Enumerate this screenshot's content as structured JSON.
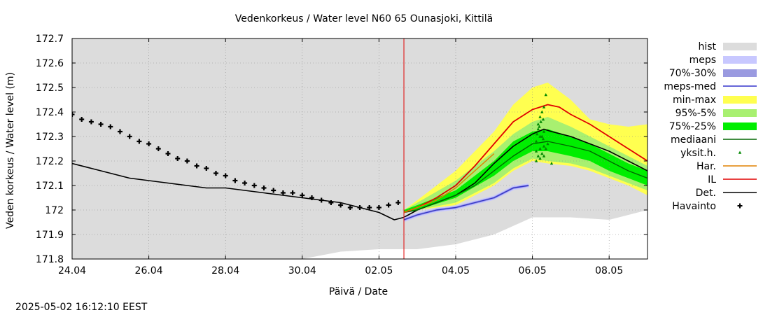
{
  "chart_data": {
    "type": "line",
    "title": "Vedenkorkeus / Water level   N60 65 Ounasjoki, Kittilä",
    "xlabel": "Päivä / Date",
    "ylabel": "Veden korkeus / Water level (m)",
    "ylim": [
      171.8,
      172.7
    ],
    "xlim": [
      0,
      15
    ],
    "x_unit": "days from 24.04.2025",
    "xticks": [
      {
        "x": 0,
        "label": "24.04"
      },
      {
        "x": 2,
        "label": "26.04"
      },
      {
        "x": 4,
        "label": "28.04"
      },
      {
        "x": 6,
        "label": "30.04"
      },
      {
        "x": 8,
        "label": "02.05"
      },
      {
        "x": 10,
        "label": "04.05"
      },
      {
        "x": 12,
        "label": "06.05"
      },
      {
        "x": 14,
        "label": "08.05"
      }
    ],
    "yticks": [
      "171.8",
      "171.9",
      "172",
      "172.1",
      "172.2",
      "172.3",
      "172.4",
      "172.5",
      "172.6",
      "172.7"
    ],
    "grid": true,
    "legend_position": "right",
    "forecast_start_x": 8.65,
    "legend": [
      {
        "label": "hist",
        "type": "band",
        "color": "#dcdcdc"
      },
      {
        "label": "meps",
        "type": "band",
        "color": "#c8c8ff"
      },
      {
        "label": "70%-30%",
        "type": "band",
        "color": "#9a9ae0"
      },
      {
        "label": "meps-med",
        "type": "line",
        "color": "#3333cc"
      },
      {
        "label": "min-max",
        "type": "band",
        "color": "#ffff50"
      },
      {
        "label": "95%-5%",
        "type": "band",
        "color": "#a8f070"
      },
      {
        "label": "75%-25%",
        "type": "band",
        "color": "#00ee00"
      },
      {
        "label": "mediaani",
        "type": "line",
        "color": "#006600"
      },
      {
        "label": "yksit.h.",
        "type": "point",
        "color": "#008800"
      },
      {
        "label": "Har.",
        "type": "line",
        "color": "#e08000"
      },
      {
        "label": "IL",
        "type": "line",
        "color": "#e00000"
      },
      {
        "label": "Det.",
        "type": "line",
        "color": "#000000"
      },
      {
        "label": "Havainto",
        "type": "marker",
        "color": "#000000"
      }
    ],
    "bands": {
      "hist": {
        "color": "#dcdcdc",
        "x": [
          0,
          6,
          7,
          8,
          9,
          10,
          11,
          12,
          13,
          14,
          15
        ],
        "lower": [
          171.8,
          171.8,
          171.83,
          171.84,
          171.84,
          171.86,
          171.9,
          171.97,
          171.97,
          171.96,
          172.0
        ],
        "upper": [
          172.7,
          172.7,
          172.7,
          172.7,
          172.7,
          172.7,
          172.7,
          172.7,
          172.7,
          172.7,
          172.7
        ]
      },
      "min_max": {
        "color": "#ffff50",
        "x": [
          8.65,
          9,
          10,
          11,
          11.5,
          12,
          12.4,
          13,
          13.5,
          14,
          14.5,
          15
        ],
        "lower": [
          171.99,
          172.0,
          172.02,
          172.1,
          172.16,
          172.2,
          172.19,
          172.18,
          172.16,
          172.13,
          172.1,
          172.06
        ],
        "upper": [
          172.0,
          172.04,
          172.16,
          172.32,
          172.43,
          172.5,
          172.52,
          172.45,
          172.37,
          172.35,
          172.34,
          172.35
        ]
      },
      "p95_5": {
        "color": "#a8f070",
        "x": [
          8.65,
          9,
          10,
          11,
          11.5,
          12,
          12.4,
          13,
          13.5,
          14,
          14.5,
          15
        ],
        "lower": [
          171.99,
          172.0,
          172.03,
          172.11,
          172.17,
          172.21,
          172.2,
          172.19,
          172.17,
          172.14,
          172.11,
          172.08
        ],
        "upper": [
          172.0,
          172.03,
          172.12,
          172.24,
          172.31,
          172.36,
          172.38,
          172.34,
          172.3,
          172.26,
          172.22,
          172.18
        ]
      },
      "p75_25": {
        "color": "#00ee00",
        "x": [
          8.65,
          9,
          10,
          11,
          11.5,
          12,
          12.4,
          13,
          13.5,
          14,
          14.5,
          15
        ],
        "lower": [
          171.99,
          172.0,
          172.05,
          172.14,
          172.2,
          172.24,
          172.24,
          172.22,
          172.2,
          172.16,
          172.13,
          172.1
        ],
        "upper": [
          172.0,
          172.02,
          172.08,
          172.2,
          172.28,
          172.32,
          172.33,
          172.3,
          172.27,
          172.23,
          172.19,
          172.16
        ]
      }
    },
    "series": [
      {
        "name": "Havainto",
        "kind": "markers",
        "color": "#000000",
        "x": [
          0,
          0.25,
          0.5,
          0.75,
          1,
          1.25,
          1.5,
          1.75,
          2,
          2.25,
          2.5,
          2.75,
          3,
          3.25,
          3.5,
          3.75,
          4,
          4.25,
          4.5,
          4.75,
          5,
          5.25,
          5.5,
          5.75,
          6,
          6.25,
          6.5,
          6.75,
          7,
          7.25,
          7.5,
          7.75,
          8,
          8.25,
          8.5
        ],
        "y": [
          172.39,
          172.37,
          172.36,
          172.35,
          172.34,
          172.32,
          172.3,
          172.28,
          172.27,
          172.25,
          172.23,
          172.21,
          172.2,
          172.18,
          172.17,
          172.15,
          172.14,
          172.12,
          172.11,
          172.1,
          172.09,
          172.08,
          172.07,
          172.07,
          172.06,
          172.05,
          172.04,
          172.03,
          172.02,
          172.01,
          172.01,
          172.01,
          172.01,
          172.02,
          172.03
        ]
      },
      {
        "name": "Det.",
        "kind": "line",
        "color": "#000000",
        "x": [
          0,
          0.5,
          1,
          1.5,
          2,
          2.5,
          3,
          3.5,
          4,
          4.5,
          5,
          5.5,
          6,
          6.5,
          7,
          7.5,
          8,
          8.4,
          8.65,
          9,
          9.5,
          10,
          10.5,
          11,
          11.5,
          12,
          12.3,
          12.5,
          13,
          13.5,
          14,
          14.5,
          15
        ],
        "y": [
          172.19,
          172.17,
          172.15,
          172.13,
          172.12,
          172.11,
          172.1,
          172.09,
          172.09,
          172.08,
          172.07,
          172.06,
          172.05,
          172.04,
          172.03,
          172.01,
          171.99,
          171.96,
          171.97,
          172.0,
          172.03,
          172.06,
          172.11,
          172.19,
          172.26,
          172.31,
          172.33,
          172.32,
          172.3,
          172.27,
          172.24,
          172.2,
          172.16
        ]
      },
      {
        "name": "mediaani",
        "kind": "line",
        "color": "#006600",
        "x": [
          8.65,
          9,
          9.5,
          10,
          10.5,
          11,
          11.5,
          12,
          12.4,
          13,
          13.5,
          14,
          14.5,
          15
        ],
        "y": [
          171.99,
          172.0,
          172.03,
          172.06,
          172.1,
          172.16,
          172.22,
          172.27,
          172.28,
          172.26,
          172.24,
          172.2,
          172.16,
          172.13
        ]
      },
      {
        "name": "IL",
        "kind": "line",
        "color": "#e00000",
        "x": [
          8.65,
          9,
          9.5,
          10,
          10.5,
          11,
          11.5,
          12,
          12.4,
          12.7,
          13,
          13.5,
          14,
          14.5,
          15
        ],
        "y": [
          171.99,
          172.01,
          172.05,
          172.1,
          172.18,
          172.27,
          172.36,
          172.41,
          172.43,
          172.42,
          172.39,
          172.35,
          172.3,
          172.25,
          172.2
        ]
      },
      {
        "name": "Har.",
        "kind": "line",
        "color": "#e08000",
        "x": [
          8.65,
          9,
          9.5,
          10,
          10.5,
          11
        ],
        "y": [
          171.99,
          172.01,
          172.04,
          172.09,
          172.16,
          172.23
        ]
      },
      {
        "name": "meps-med",
        "kind": "line",
        "color": "#3333cc",
        "x": [
          8.65,
          9,
          9.5,
          10,
          10.5,
          11,
          11.5,
          11.9
        ],
        "y": [
          171.96,
          171.98,
          172.0,
          172.01,
          172.03,
          172.05,
          172.09,
          172.1
        ]
      },
      {
        "name": "yksit.h.",
        "kind": "points",
        "color": "#008800",
        "x": [
          12.1,
          12.15,
          12.2,
          12.25,
          12.3,
          12.1,
          12.2,
          12.3,
          12.18,
          12.22,
          12.12,
          12.28,
          12.2,
          12.25,
          12.15,
          12.3,
          12.35,
          12.4,
          12.2,
          12.15,
          12.1,
          12.25,
          12.3,
          12.5,
          12.35,
          12.28
        ],
        "y": [
          172.2,
          172.22,
          172.25,
          172.23,
          172.26,
          172.28,
          172.3,
          172.32,
          172.34,
          172.36,
          172.31,
          172.29,
          172.38,
          172.4,
          172.33,
          172.42,
          172.47,
          172.27,
          172.21,
          172.35,
          172.24,
          172.3,
          172.22,
          172.19,
          172.25,
          172.37
        ]
      }
    ],
    "footer": "2025-05-02 16:12:10 EEST"
  }
}
